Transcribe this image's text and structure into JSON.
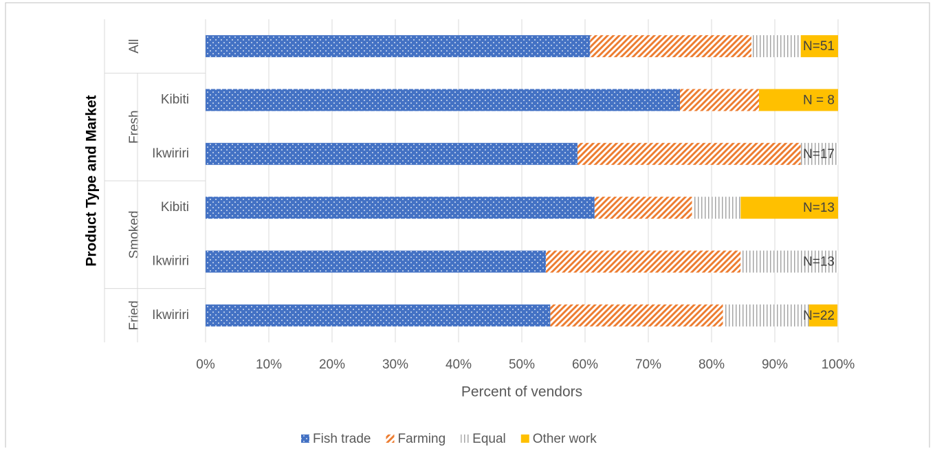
{
  "chart_data": {
    "type": "stacked-bar-horizontal",
    "x_label": "Percent of vendors",
    "y_label": "Product Type and Market",
    "category_groups": [
      "All",
      "Fresh",
      "Fresh",
      "Smoked",
      "Smoked",
      "Fried"
    ],
    "categories": [
      null,
      "Kibiti",
      "Ikwiriri",
      "Kibiti",
      "Ikwiriri",
      "Ikwiriri"
    ],
    "bar_labels": [
      "N=51",
      "N = 8",
      "N=17",
      "N=13",
      "N=13",
      "N=22"
    ],
    "series": [
      {
        "name": "Fish trade",
        "color": "#4472c4",
        "pattern": "dots",
        "values": [
          60.8,
          75,
          58.8,
          61.5,
          53.8,
          54.5
        ]
      },
      {
        "name": "Farming",
        "color": "#ed7d31",
        "pattern": "diagonal",
        "values": [
          25.5,
          12.5,
          35.3,
          15.4,
          30.8,
          27.3
        ]
      },
      {
        "name": "Equal",
        "color": "#a5a5a5",
        "pattern": "vertical",
        "values": [
          7.8,
          0,
          5.9,
          7.7,
          15.4,
          13.6
        ]
      },
      {
        "name": "Other work",
        "color": "#ffc000",
        "pattern": "solid",
        "values": [
          5.9,
          12.5,
          0,
          15.4,
          0,
          4.5
        ]
      }
    ],
    "xlim": [
      0,
      100
    ],
    "xticks": [
      {
        "value": 0,
        "label": "0%"
      },
      {
        "value": 10,
        "label": "10%"
      },
      {
        "value": 20,
        "label": "20%"
      },
      {
        "value": 30,
        "label": "30%"
      },
      {
        "value": 40,
        "label": "40%"
      },
      {
        "value": 50,
        "label": "50%"
      },
      {
        "value": 60,
        "label": "60%"
      },
      {
        "value": 70,
        "label": "70%"
      },
      {
        "value": 80,
        "label": "80%"
      },
      {
        "value": 90,
        "label": "90%"
      },
      {
        "value": 100,
        "label": "100%"
      }
    ],
    "grid": true,
    "legend": "bottom"
  }
}
